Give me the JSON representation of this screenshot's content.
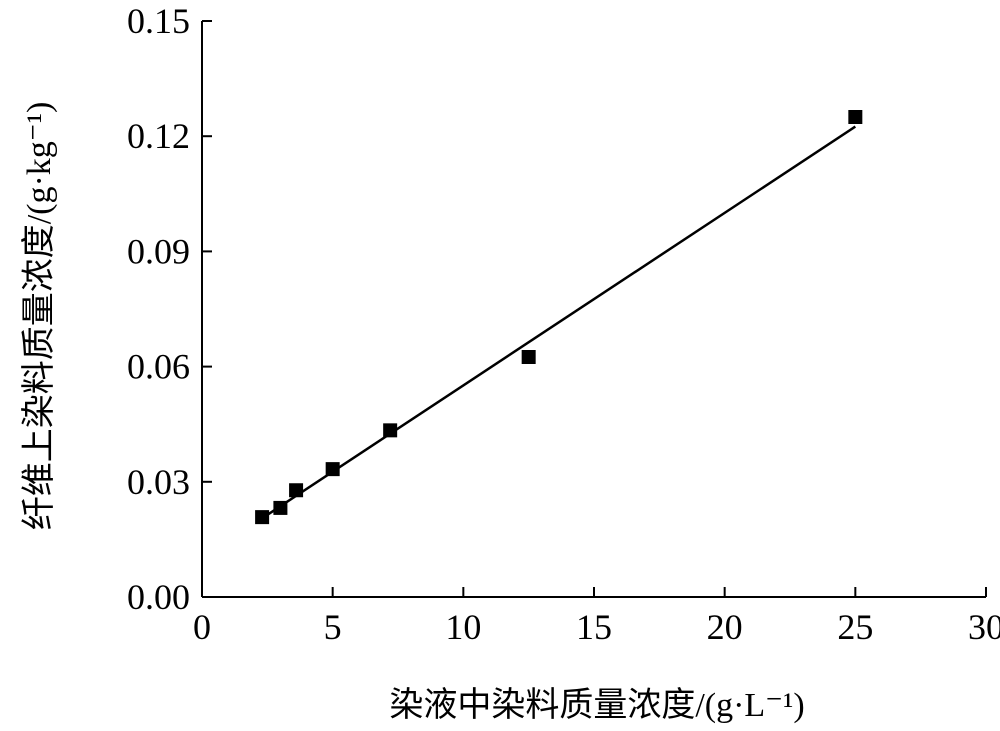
{
  "chart_data": {
    "type": "scatter",
    "xlabel": "染液中染料质量浓度/(g·L⁻¹)",
    "ylabel": "纤维上染料质量浓度/(g·kg⁻¹)",
    "xlim": [
      0,
      30
    ],
    "ylim": [
      0,
      0.15
    ],
    "x_ticks": [
      0,
      5,
      10,
      15,
      20,
      25,
      30
    ],
    "y_ticks": [
      0.0,
      0.03,
      0.06,
      0.09,
      0.12,
      0.15
    ],
    "x_tick_labels": [
      "0",
      "5",
      "10",
      "15",
      "20",
      "25",
      "30"
    ],
    "y_tick_labels": [
      "0.00",
      "0.03",
      "0.06",
      "0.09",
      "0.12",
      "0.15"
    ],
    "grid": false,
    "marker": "square",
    "series": [
      {
        "x": [
          2.3,
          3.0,
          3.6,
          5.0,
          7.2,
          12.5,
          25.0
        ],
        "y": [
          0.0208,
          0.0232,
          0.0278,
          0.0333,
          0.0434,
          0.0625,
          0.125
        ]
      }
    ],
    "fit_line": {
      "x": [
        2.3,
        25.0
      ],
      "y": [
        0.0205,
        0.1225
      ]
    }
  }
}
